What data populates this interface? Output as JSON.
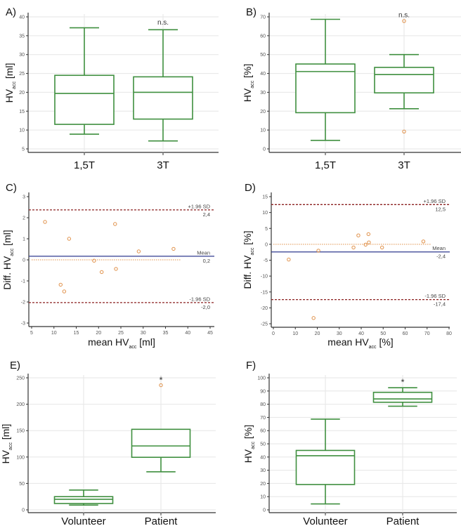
{
  "colors": {
    "box": "#3f8f3f",
    "outlier": "#e0914a",
    "mean": "#2f3a8f",
    "limits": "#8b2020",
    "zero": "#e0914a",
    "grid": "#e6e6e6",
    "axis": "#333333"
  },
  "chart_data": [
    {
      "id": "A",
      "panel_label": "A)",
      "type": "box",
      "ylabel": {
        "pre": "HV",
        "sub": "acc",
        "post": " [ml]"
      },
      "ylim": [
        5,
        40
      ],
      "yticks": [
        5,
        10,
        15,
        20,
        25,
        30,
        35,
        40
      ],
      "grid": true,
      "categories": [
        "1,5T",
        "3T"
      ],
      "boxes": [
        {
          "min": 8.9,
          "q1": 11.5,
          "median": 19.7,
          "q3": 24.5,
          "max": 37.1,
          "outliers": []
        },
        {
          "min": 7.1,
          "q1": 12.9,
          "median": 20.0,
          "q3": 24.1,
          "max": 36.6,
          "outliers": []
        }
      ],
      "annotation": {
        "text": "n.s.",
        "category": 1,
        "y": 38.5
      }
    },
    {
      "id": "B",
      "panel_label": "B)",
      "type": "box",
      "ylabel": {
        "pre": "HV",
        "sub": "acc",
        "post": " [%]"
      },
      "ylim": [
        0,
        70
      ],
      "yticks": [
        0,
        10,
        20,
        30,
        40,
        50,
        60,
        70
      ],
      "grid": true,
      "categories": [
        "1,5T",
        "3T"
      ],
      "boxes": [
        {
          "min": 4.5,
          "q1": 19.2,
          "median": 41,
          "q3": 45,
          "max": 68.7,
          "outliers": []
        },
        {
          "min": 21.3,
          "q1": 29.7,
          "median": 39.4,
          "q3": 43.2,
          "max": 50,
          "outliers": [
            9.2,
            67.8
          ]
        }
      ],
      "annotation": {
        "text": "n.s.",
        "category": 1,
        "y": 71
      }
    },
    {
      "id": "C",
      "panel_label": "C)",
      "type": "scatter",
      "ylabel": {
        "pre": "Diff. HV",
        "sub": "acc",
        "post": " [ml]"
      },
      "xlabel": {
        "pre": "mean HV",
        "sub": "acc",
        "post": " [ml]"
      },
      "xlim": [
        5,
        45
      ],
      "ylim": [
        -3,
        3
      ],
      "xticks": [
        5,
        10,
        15,
        20,
        25,
        30,
        35,
        40,
        45
      ],
      "yticks": [
        -3,
        -2,
        -1,
        0,
        1,
        2,
        3
      ],
      "points": [
        [
          8,
          1.8
        ],
        [
          11.5,
          -1.18
        ],
        [
          12.3,
          -1.5
        ],
        [
          13.4,
          1.0
        ],
        [
          19,
          -0.04
        ],
        [
          20.7,
          -0.58
        ],
        [
          23.7,
          1.7
        ],
        [
          23.9,
          -0.43
        ],
        [
          29,
          0.4
        ],
        [
          36.8,
          0.52
        ]
      ],
      "zero_line_xmax": 38.5,
      "lines": [
        {
          "kind": "upper",
          "label": "+1.96 SD",
          "value_label": "2,4",
          "y": 2.37
        },
        {
          "kind": "mean",
          "label": "Mean",
          "value_label": "0,2",
          "y": 0.17
        },
        {
          "kind": "lower",
          "label": "-1.96 SD",
          "value_label": "-2,0",
          "y": -2.03
        }
      ]
    },
    {
      "id": "D",
      "panel_label": "D)",
      "type": "scatter",
      "ylabel": {
        "pre": "Diff. HV",
        "sub": "acc",
        "post": " [%]"
      },
      "xlabel": {
        "pre": "mean HV",
        "sub": "acc",
        "post": " [%]"
      },
      "xlim": [
        0,
        80
      ],
      "ylim": [
        -25,
        15
      ],
      "xticks": [
        0,
        10,
        20,
        30,
        40,
        50,
        60,
        70,
        80
      ],
      "yticks": [
        -25,
        -20,
        -15,
        -10,
        -5,
        0,
        5,
        10,
        15
      ],
      "points": [
        [
          7,
          -4.8
        ],
        [
          18.3,
          -23.2
        ],
        [
          20.5,
          -2
        ],
        [
          36.5,
          -1
        ],
        [
          38.7,
          2.8
        ],
        [
          42,
          -0.1
        ],
        [
          43.3,
          3.2
        ],
        [
          43.5,
          0.6
        ],
        [
          49.5,
          -1
        ],
        [
          68.3,
          0.9
        ]
      ],
      "zero_line_xmax": 72,
      "lines": [
        {
          "kind": "upper",
          "label": "+1.96 SD",
          "value_label": "12,5",
          "y": 12.5
        },
        {
          "kind": "mean",
          "label": "Mean",
          "value_label": "-2,4",
          "y": -2.4
        },
        {
          "kind": "lower",
          "label": "-1.96 SD",
          "value_label": "-17,4",
          "y": -17.4
        }
      ]
    },
    {
      "id": "E",
      "panel_label": "E)",
      "type": "box",
      "ylabel": {
        "pre": "HV",
        "sub": "acc",
        "post": " [ml]"
      },
      "ylim": [
        0,
        250
      ],
      "yticks": [
        0,
        50,
        100,
        150,
        200,
        250
      ],
      "grid": true,
      "categories": [
        "Volunteer",
        "Patient"
      ],
      "boxes": [
        {
          "min": 9,
          "q1": 12,
          "median": 20,
          "q3": 25,
          "max": 37.5,
          "outliers": []
        },
        {
          "min": 72,
          "q1": 99.5,
          "median": 121,
          "q3": 152.5,
          "max": 152.5,
          "outliers": [
            236
          ]
        }
      ],
      "annotation": {
        "text": "*",
        "category": 1,
        "y": 244
      }
    },
    {
      "id": "F",
      "panel_label": "F)",
      "type": "box",
      "ylabel": {
        "pre": "HV",
        "sub": "acc",
        "post": " [%]"
      },
      "ylim": [
        0,
        100
      ],
      "yticks": [
        0,
        10,
        20,
        30,
        40,
        50,
        60,
        70,
        80,
        90,
        100
      ],
      "grid": true,
      "categories": [
        "Volunteer",
        "Patient"
      ],
      "boxes": [
        {
          "min": 4.5,
          "q1": 19.2,
          "median": 41,
          "q3": 45,
          "max": 68.7,
          "outliers": []
        },
        {
          "min": 78.5,
          "q1": 81.5,
          "median": 84,
          "q3": 89,
          "max": 92.5,
          "outliers": []
        }
      ],
      "annotation": {
        "text": "*",
        "category": 1,
        "y": 96
      }
    }
  ]
}
